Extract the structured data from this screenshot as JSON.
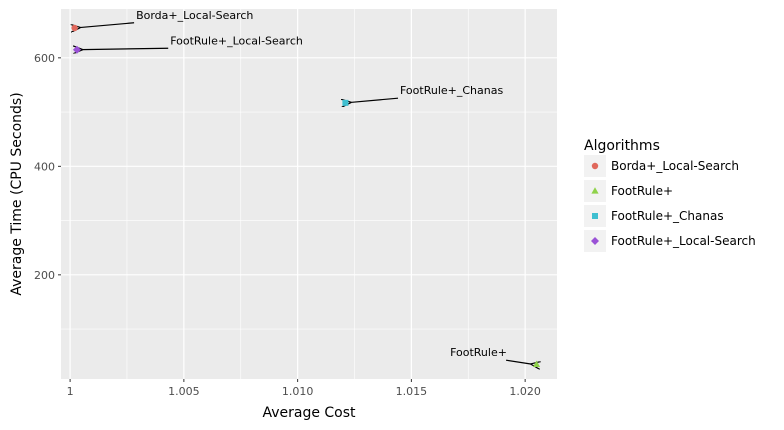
{
  "chart_data": {
    "type": "scatter",
    "xlabel": "Average Cost",
    "ylabel": "Average Time (CPU Seconds)",
    "xlim": [
      0.9996,
      1.0214
    ],
    "ylim": [
      8,
      690
    ],
    "x_ticks": [
      1.0,
      1.005,
      1.01,
      1.015,
      1.02
    ],
    "x_tick_labels": [
      "1",
      "1.005",
      "1.010",
      "1.015",
      "1.020"
    ],
    "y_ticks": [
      200,
      400,
      600
    ],
    "y_tick_labels": [
      "200",
      "400",
      "600"
    ],
    "grid": true,
    "legend": {
      "title": "Algorithms",
      "placement": "right"
    },
    "series": [
      {
        "name": "Borda+_Local-Search",
        "shape": "circle",
        "color": "#e0685c",
        "x": 1.0002,
        "y": 655,
        "label_x": 1.0029,
        "label_y": 672
      },
      {
        "name": "FootRule+",
        "shape": "triangle",
        "color": "#8fd24a",
        "x": 1.0205,
        "y": 35,
        "label_x": 1.0167,
        "label_y": 50
      },
      {
        "name": "FootRule+_Chanas",
        "shape": "square",
        "color": "#3fbfd0",
        "x": 1.0121,
        "y": 517,
        "label_x": 1.0145,
        "label_y": 533
      },
      {
        "name": "FootRule+_Local-Search",
        "shape": "diamond",
        "color": "#9a52d6",
        "x": 1.0003,
        "y": 615,
        "label_x": 1.0044,
        "label_y": 625
      }
    ]
  }
}
